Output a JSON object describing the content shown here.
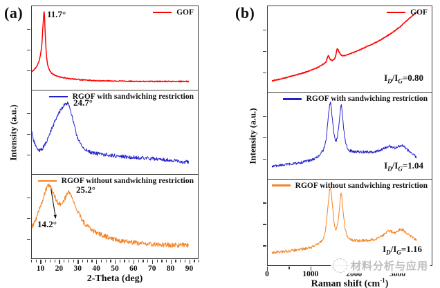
{
  "panels": {
    "a": {
      "label": "(a)",
      "ylabel": "Intensity (a.u.)",
      "xlabel": "2-Theta (deg)"
    },
    "b": {
      "label": "(b)",
      "ylabel": "Intensity (a.u.)",
      "xlabel_prefix": "Raman shift (cm",
      "xlabel_sup": "-1",
      "xlabel_suffix": ")",
      "ratio": {
        "I": "I",
        "D": "D",
        "slash": "/",
        "G": "G",
        "eq": "="
      }
    }
  },
  "watermark": {
    "text": "材料分析与应用"
  },
  "chart_data": [
    {
      "id": "xrd-patterns",
      "type": "line",
      "title": "",
      "xlabel": "2-Theta (deg)",
      "ylabel": "Intensity (a.u.)",
      "xlim": [
        5,
        95
      ],
      "xticks": [
        10,
        20,
        30,
        40,
        50,
        60,
        70,
        80,
        90
      ],
      "xminor_step": 2.5,
      "legend_position": "top-right of each stacked subplot",
      "series": [
        {
          "name": "GOF",
          "color": "#ff0000",
          "peak_label": "11.7°",
          "noise": 0.006,
          "seed": 3,
          "width": 1.5,
          "points": [
            [
              5,
              0.22
            ],
            [
              7,
              0.26
            ],
            [
              9,
              0.35
            ],
            [
              10.3,
              0.52
            ],
            [
              11.1,
              0.78
            ],
            [
              11.7,
              0.93
            ],
            [
              12.2,
              0.7
            ],
            [
              12.8,
              0.45
            ],
            [
              13.6,
              0.3
            ],
            [
              15,
              0.22
            ],
            [
              17,
              0.18
            ],
            [
              20,
              0.155
            ],
            [
              25,
              0.135
            ],
            [
              32,
              0.12
            ],
            [
              40,
              0.11
            ],
            [
              50,
              0.105
            ],
            [
              65,
              0.1
            ],
            [
              78,
              0.1
            ],
            [
              90,
              0.1
            ]
          ]
        },
        {
          "name": "RGOF with sandwiching restriction",
          "color": "#2222cc",
          "peak_label": "24.7°",
          "noise": 0.022,
          "seed": 11,
          "width": 1,
          "points": [
            [
              5,
              0.5
            ],
            [
              6,
              0.4
            ],
            [
              7.5,
              0.32
            ],
            [
              9,
              0.28
            ],
            [
              10.5,
              0.3
            ],
            [
              12,
              0.35
            ],
            [
              14,
              0.44
            ],
            [
              16,
              0.55
            ],
            [
              18,
              0.65
            ],
            [
              20,
              0.74
            ],
            [
              22,
              0.81
            ],
            [
              24,
              0.85
            ],
            [
              24.7,
              0.84
            ],
            [
              26,
              0.76
            ],
            [
              27.5,
              0.63
            ],
            [
              29,
              0.49
            ],
            [
              31,
              0.38
            ],
            [
              33,
              0.31
            ],
            [
              36,
              0.27
            ],
            [
              40,
              0.245
            ],
            [
              45,
              0.23
            ],
            [
              52,
              0.215
            ],
            [
              60,
              0.2
            ],
            [
              70,
              0.185
            ],
            [
              80,
              0.165
            ],
            [
              90,
              0.14
            ]
          ]
        },
        {
          "name": "RGOF without sandwiching restriction",
          "color": "#f58220",
          "peak_label": "25.2°",
          "peak_label2": "14.2°",
          "noise": 0.028,
          "seed": 19,
          "width": 1,
          "points": [
            [
              5,
              0.37
            ],
            [
              6.5,
              0.43
            ],
            [
              8,
              0.52
            ],
            [
              10,
              0.64
            ],
            [
              12,
              0.78
            ],
            [
              13.5,
              0.86
            ],
            [
              14.2,
              0.88
            ],
            [
              15.5,
              0.84
            ],
            [
              17,
              0.76
            ],
            [
              18.5,
              0.69
            ],
            [
              20,
              0.645
            ],
            [
              21.5,
              0.66
            ],
            [
              23,
              0.72
            ],
            [
              24.5,
              0.78
            ],
            [
              25.2,
              0.785
            ],
            [
              26.5,
              0.74
            ],
            [
              28,
              0.66
            ],
            [
              30,
              0.56
            ],
            [
              32,
              0.47
            ],
            [
              34,
              0.41
            ],
            [
              37,
              0.35
            ],
            [
              40,
              0.31
            ],
            [
              44,
              0.27
            ],
            [
              48,
              0.24
            ],
            [
              53,
              0.21
            ],
            [
              60,
              0.19
            ],
            [
              68,
              0.17
            ],
            [
              78,
              0.16
            ],
            [
              90,
              0.155
            ]
          ]
        }
      ]
    },
    {
      "id": "raman-spectra",
      "type": "line",
      "title": "",
      "xlabel": "Raman shift (cm⁻¹)",
      "ylabel": "Intensity (a.u.)",
      "xlim": [
        0,
        3800
      ],
      "xticks": [
        0,
        1000,
        2000,
        3000
      ],
      "xminor_step": 500,
      "legend_position": "top-right of each stacked subplot",
      "series": [
        {
          "name": "GOF",
          "color": "#ff0000",
          "id_ig": "0.80",
          "noise": 0.005,
          "seed": 5,
          "width": 1.6,
          "points": [
            [
              100,
              0.13
            ],
            [
              400,
              0.165
            ],
            [
              700,
              0.205
            ],
            [
              950,
              0.245
            ],
            [
              1150,
              0.285
            ],
            [
              1300,
              0.33
            ],
            [
              1360,
              0.36
            ],
            [
              1400,
              0.425
            ],
            [
              1440,
              0.385
            ],
            [
              1500,
              0.37
            ],
            [
              1560,
              0.4
            ],
            [
              1610,
              0.5
            ],
            [
              1650,
              0.47
            ],
            [
              1720,
              0.425
            ],
            [
              1850,
              0.435
            ],
            [
              2050,
              0.475
            ],
            [
              2300,
              0.53
            ],
            [
              2550,
              0.59
            ],
            [
              2800,
              0.665
            ],
            [
              3050,
              0.755
            ],
            [
              3250,
              0.845
            ],
            [
              3450,
              0.93
            ]
          ]
        },
        {
          "name": "RGOF with sandwiching restriction",
          "color": "#2222cc",
          "id_ig": "1.04",
          "noise": 0.016,
          "seed": 17,
          "width": 1,
          "points": [
            [
              100,
              0.14
            ],
            [
              350,
              0.155
            ],
            [
              650,
              0.175
            ],
            [
              900,
              0.2
            ],
            [
              1100,
              0.235
            ],
            [
              1250,
              0.3
            ],
            [
              1340,
              0.42
            ],
            [
              1400,
              0.7
            ],
            [
              1450,
              0.88
            ],
            [
              1500,
              0.68
            ],
            [
              1550,
              0.47
            ],
            [
              1600,
              0.46
            ],
            [
              1650,
              0.62
            ],
            [
              1700,
              0.85
            ],
            [
              1740,
              0.68
            ],
            [
              1800,
              0.44
            ],
            [
              1870,
              0.34
            ],
            [
              1980,
              0.315
            ],
            [
              2150,
              0.31
            ],
            [
              2350,
              0.305
            ],
            [
              2550,
              0.32
            ],
            [
              2700,
              0.35
            ],
            [
              2820,
              0.375
            ],
            [
              2950,
              0.355
            ],
            [
              3100,
              0.385
            ],
            [
              3250,
              0.33
            ],
            [
              3450,
              0.245
            ]
          ]
        },
        {
          "name": "RGOF without sandwiching restriction",
          "color": "#f58220",
          "id_ig": "1.16",
          "noise": 0.016,
          "seed": 29,
          "width": 1,
          "points": [
            [
              100,
              0.15
            ],
            [
              350,
              0.16
            ],
            [
              650,
              0.18
            ],
            [
              900,
              0.2
            ],
            [
              1100,
              0.23
            ],
            [
              1250,
              0.29
            ],
            [
              1340,
              0.42
            ],
            [
              1400,
              0.72
            ],
            [
              1450,
              0.9
            ],
            [
              1500,
              0.7
            ],
            [
              1550,
              0.46
            ],
            [
              1600,
              0.44
            ],
            [
              1650,
              0.6
            ],
            [
              1700,
              0.835
            ],
            [
              1740,
              0.66
            ],
            [
              1800,
              0.42
            ],
            [
              1870,
              0.32
            ],
            [
              1980,
              0.295
            ],
            [
              2150,
              0.29
            ],
            [
              2350,
              0.295
            ],
            [
              2550,
              0.315
            ],
            [
              2700,
              0.36
            ],
            [
              2820,
              0.4
            ],
            [
              2950,
              0.38
            ],
            [
              3100,
              0.42
            ],
            [
              3250,
              0.36
            ],
            [
              3450,
              0.3
            ]
          ]
        }
      ]
    }
  ]
}
